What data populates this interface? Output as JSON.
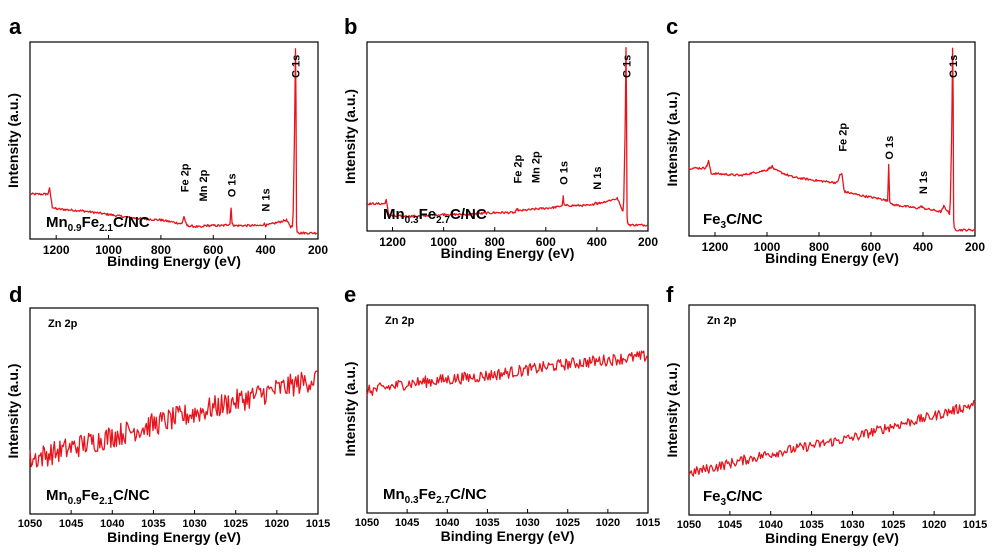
{
  "figure": {
    "panels": [
      {
        "letter": "a",
        "sample": {
          "base": "Mn",
          "sub1": "0.9",
          "mid": "Fe",
          "sub2": "2.1",
          "tail": "C/NC"
        },
        "peaks": [
          "Fe 2p",
          "Mn 2p",
          "O 1s",
          "N 1s",
          "C 1s"
        ]
      },
      {
        "letter": "b",
        "sample": {
          "base": "Mn",
          "sub1": "0.3",
          "mid": "Fe",
          "sub2": "2.7",
          "tail": "C/NC"
        },
        "peaks": [
          "Fe 2p",
          "Mn 2p",
          "O 1s",
          "N 1s",
          "C 1s"
        ]
      },
      {
        "letter": "c",
        "sample": {
          "base": "Fe",
          "sub1": "3",
          "mid": "C/NC",
          "sub2": "",
          "tail": ""
        },
        "peaks": [
          "Fe 2p",
          "O 1s",
          "N 1s",
          "C 1s"
        ]
      },
      {
        "letter": "d",
        "sample": {
          "base": "Mn",
          "sub1": "0.9",
          "mid": "Fe",
          "sub2": "2.1",
          "tail": "C/NC"
        },
        "region": "Zn 2p"
      },
      {
        "letter": "e",
        "sample": {
          "base": "Mn",
          "sub1": "0.3",
          "mid": "Fe",
          "sub2": "2.7",
          "tail": "C/NC"
        },
        "region": "Zn 2p"
      },
      {
        "letter": "f",
        "sample": {
          "base": "Fe",
          "sub1": "3",
          "mid": "C/NC",
          "sub2": "",
          "tail": ""
        },
        "region": "Zn 2p"
      }
    ],
    "line_color": "#e8141c"
  },
  "chart_data": [
    {
      "type": "line",
      "panel": "a",
      "xlabel": "Binding Energy (eV)",
      "ylabel": "Intensity (a.u.)",
      "xlim": [
        1300,
        200
      ],
      "x_reversed": true,
      "xticks": [
        1200,
        1000,
        800,
        600,
        400,
        200
      ],
      "ylim": [
        0,
        100
      ],
      "y_ticks_shown": false,
      "series": [
        {
          "x": [
            1300,
            1240,
            1232,
            1225,
            1215,
            1200,
            1100,
            1000,
            900,
            800,
            720,
            712,
            704,
            700,
            640,
            635,
            560,
            536,
            532,
            528,
            520,
            420,
            404,
            400,
            320,
            305,
            298,
            295,
            290,
            286,
            284,
            282,
            280,
            270,
            200
          ],
          "y": [
            21,
            21,
            21,
            24,
            14,
            13,
            12,
            10,
            8,
            7,
            5,
            9,
            5,
            4,
            3,
            4,
            4,
            5,
            14,
            5,
            4,
            4,
            5,
            4,
            7,
            3,
            4,
            10,
            50,
            100,
            70,
            5,
            1,
            0,
            0
          ]
        }
      ],
      "annotations": [
        {
          "text": "Fe 2p",
          "x": 710
        },
        {
          "text": "Mn 2p",
          "x": 640
        },
        {
          "text": "O 1s",
          "x": 531
        },
        {
          "text": "N 1s",
          "x": 400
        },
        {
          "text": "C 1s",
          "x": 285
        }
      ]
    },
    {
      "type": "line",
      "panel": "b",
      "xlabel": "Binding Energy (eV)",
      "ylabel": "Intensity (a.u.)",
      "xlim": [
        1300,
        200
      ],
      "x_reversed": true,
      "xticks": [
        1200,
        1000,
        800,
        600,
        400,
        200
      ],
      "ylim": [
        0,
        100
      ],
      "y_ticks_shown": false,
      "series": [
        {
          "x": [
            1300,
            1240,
            1232,
            1225,
            1215,
            1200,
            1100,
            1000,
            900,
            800,
            720,
            712,
            704,
            640,
            560,
            536,
            532,
            528,
            520,
            420,
            404,
            400,
            320,
            305,
            298,
            295,
            290,
            286,
            284,
            282,
            280,
            270,
            200
          ],
          "y": [
            12,
            12,
            12,
            14,
            6,
            5,
            5,
            6,
            6,
            7,
            7,
            9,
            8,
            9,
            10,
            11,
            16,
            11,
            11,
            11,
            13,
            12,
            15,
            10,
            8,
            14,
            50,
            100,
            70,
            5,
            1,
            0,
            0
          ]
        }
      ],
      "annotations": [
        {
          "text": "Fe 2p",
          "x": 710
        },
        {
          "text": "Mn 2p",
          "x": 640
        },
        {
          "text": "O 1s",
          "x": 531
        },
        {
          "text": "N 1s",
          "x": 400
        },
        {
          "text": "C 1s",
          "x": 285
        }
      ]
    },
    {
      "type": "line",
      "panel": "c",
      "xlabel": "Binding Energy (eV)",
      "ylabel": "Intensity (a.u.)",
      "xlim": [
        1300,
        200
      ],
      "x_reversed": true,
      "xticks": [
        1200,
        1000,
        800,
        600,
        400,
        200
      ],
      "ylim": [
        0,
        100
      ],
      "y_ticks_shown": false,
      "series": [
        {
          "x": [
            1300,
            1240,
            1232,
            1225,
            1215,
            1200,
            1100,
            1000,
            980,
            970,
            900,
            800,
            730,
            720,
            712,
            704,
            700,
            640,
            560,
            536,
            532,
            528,
            520,
            420,
            404,
            400,
            330,
            320,
            298,
            295,
            290,
            286,
            284,
            282,
            280,
            270,
            200
          ],
          "y": [
            34,
            34,
            35,
            38,
            31,
            31,
            30,
            33,
            35,
            33,
            29,
            27,
            26,
            30,
            31,
            22,
            21,
            19,
            17,
            16,
            36,
            16,
            14,
            12,
            13,
            12,
            10,
            13,
            9,
            16,
            50,
            100,
            70,
            5,
            1,
            0,
            0
          ]
        }
      ],
      "annotations": [
        {
          "text": "Fe 2p",
          "x": 710
        },
        {
          "text": "O 1s",
          "x": 531
        },
        {
          "text": "N 1s",
          "x": 400
        },
        {
          "text": "C 1s",
          "x": 285
        }
      ]
    },
    {
      "type": "line",
      "panel": "d",
      "noisy": true,
      "xlabel": "Binding Energy (eV)",
      "ylabel": "Intensity (a.u.)",
      "xlim": [
        1050,
        1015
      ],
      "x_reversed": true,
      "xticks": [
        1050,
        1045,
        1040,
        1035,
        1030,
        1025,
        1020,
        1015
      ],
      "ylim": [
        0,
        100
      ],
      "y_ticks_shown": false,
      "series": [
        {
          "x": [
            1050,
            1045,
            1040,
            1035,
            1030,
            1025,
            1020,
            1015
          ],
          "y": [
            25,
            31,
            37,
            43,
            49,
            55,
            61,
            67
          ],
          "noise_amplitude": 6
        }
      ]
    },
    {
      "type": "line",
      "panel": "e",
      "noisy": true,
      "xlabel": "Binding Energy (eV)",
      "ylabel": "Intensity (a.u.)",
      "xlim": [
        1050,
        1015
      ],
      "x_reversed": true,
      "xticks": [
        1050,
        1045,
        1040,
        1035,
        1030,
        1025,
        1020,
        1015
      ],
      "ylim": [
        0,
        100
      ],
      "y_ticks_shown": false,
      "series": [
        {
          "x": [
            1050,
            1045,
            1040,
            1035,
            1030,
            1025,
            1020,
            1015
          ],
          "y": [
            59,
            63,
            65,
            67,
            70,
            73,
            75,
            77
          ],
          "noise_amplitude": 3
        }
      ]
    },
    {
      "type": "line",
      "panel": "f",
      "noisy": true,
      "xlabel": "Binding Energy (eV)",
      "ylabel": "Intensity (a.u.)",
      "xlim": [
        1050,
        1015
      ],
      "x_reversed": true,
      "xticks": [
        1050,
        1045,
        1040,
        1035,
        1030,
        1025,
        1020,
        1015
      ],
      "ylim": [
        0,
        100
      ],
      "y_ticks_shown": false,
      "series": [
        {
          "x": [
            1050,
            1045,
            1040,
            1035,
            1030,
            1025,
            1020,
            1015
          ],
          "y": [
            18,
            23,
            28,
            32,
            36,
            42,
            47,
            53
          ],
          "noise_amplitude": 2.5
        }
      ]
    }
  ]
}
